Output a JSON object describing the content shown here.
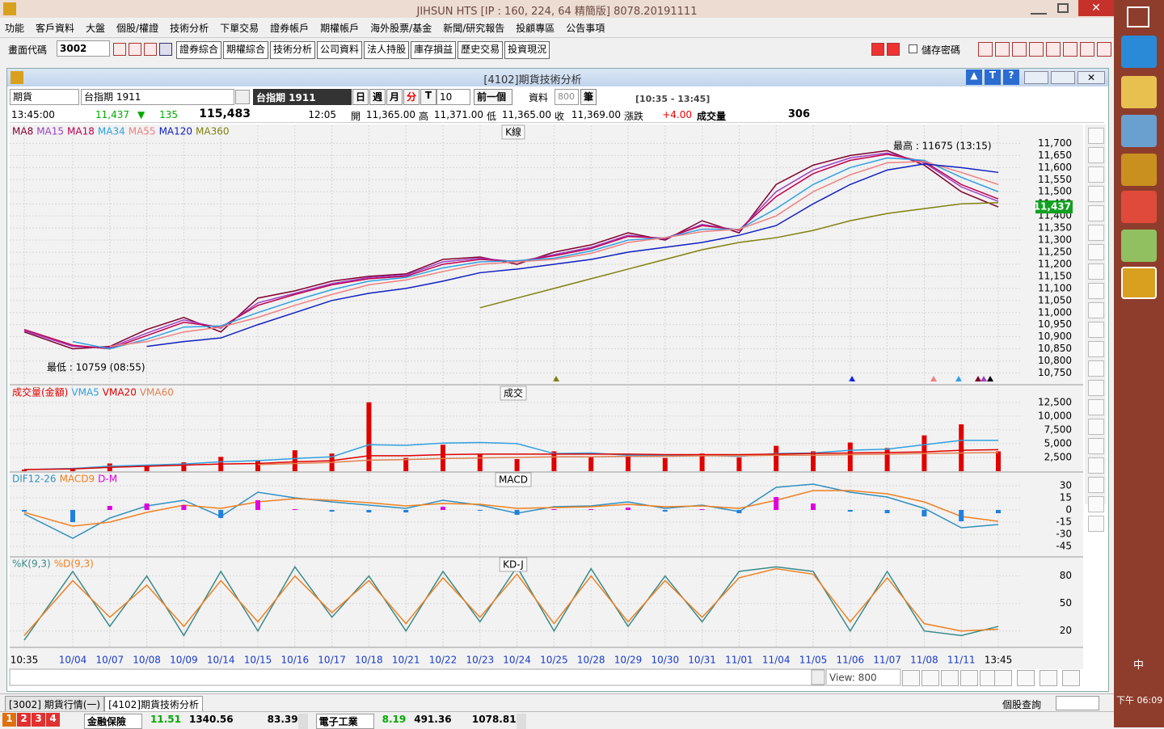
{
  "window": {
    "title": "JIHSUN HTS     [IP : 160, 224, 64 精簡版] 8078.20191111"
  },
  "menu": [
    "功能",
    "客戶資料",
    "大盤",
    "個股/權證",
    "技術分析",
    "下單交易",
    "證券帳戶",
    "期權帳戶",
    "海外股票/基金",
    "新聞/研究報告",
    "投顧專區",
    "公告事項"
  ],
  "toolbar": {
    "code_label": "畫面代碼",
    "code": "3002",
    "buttons": [
      "證券綜合",
      "期權綜合",
      "技術分析",
      "公司資料",
      "法人持股",
      "庫存損益",
      "歷史交易",
      "投資現況"
    ],
    "save_password": "儲存密碼"
  },
  "panel": {
    "title": "[4102]期貨技術分析",
    "market": "期貨",
    "symbol": "台指期 1911",
    "symbol_box": "台指期 1911",
    "periods": [
      "日",
      "週",
      "月",
      "分",
      "T"
    ],
    "interval": "10",
    "prev": "前一個",
    "data_label": "資料",
    "data_count": "800",
    "unit": "筆",
    "session": "[10:35 - 13:45]"
  },
  "quote": {
    "time": "13:45:00",
    "price": "11,437",
    "change": "135",
    "volume": "115,483",
    "bar_time": "12:05",
    "open_label": "開",
    "open": "11,365.00",
    "high_label": "高",
    "high": "11,371.00",
    "low_label": "低",
    "low": "11,365.00",
    "close_label": "收",
    "close": "11,369.00",
    "chg_label": "漲跌",
    "chg": "+4.00",
    "vol_label": "成交量",
    "vol": "306"
  },
  "chart_data": [
    {
      "type": "line",
      "title": "K線",
      "ylim": [
        10705,
        11775
      ],
      "yticks": [
        {
          "value": 10750,
          "label": "10,750"
        },
        {
          "value": 10800,
          "label": "10,800"
        },
        {
          "value": 10850,
          "label": "10,850"
        },
        {
          "value": 10900,
          "label": "10,900"
        },
        {
          "value": 10950,
          "label": "10,950"
        },
        {
          "value": 11000,
          "label": "11,000"
        },
        {
          "value": 11050,
          "label": "11,050"
        },
        {
          "value": 11100,
          "label": "11,100"
        },
        {
          "value": 11150,
          "label": "11,150"
        },
        {
          "value": 11200,
          "label": "11,200"
        },
        {
          "value": 11250,
          "label": "11,250"
        },
        {
          "value": 11300,
          "label": "11,300"
        },
        {
          "value": 11350,
          "label": "11,350"
        },
        {
          "value": 11400,
          "label": "11,400"
        },
        {
          "value": 11450,
          "label": "11,450"
        },
        {
          "value": 11500,
          "label": "11,500"
        },
        {
          "value": 11550,
          "label": "11,550"
        },
        {
          "value": 11600,
          "label": "11,600"
        },
        {
          "value": 11650,
          "label": "11,650"
        },
        {
          "value": 11700,
          "label": "11,700"
        }
      ],
      "annotations": [
        "最高 : 11675 (13:15)",
        "最低 : 10759 (08:55)"
      ],
      "last_label": "11,437",
      "series": [
        {
          "name": "MA8",
          "color": "#800030",
          "values": [
            10920,
            10850,
            10860,
            10930,
            10980,
            10920,
            11060,
            11090,
            11130,
            11150,
            11160,
            11220,
            11230,
            11200,
            11250,
            11280,
            11330,
            11300,
            11380,
            11330,
            11530,
            11610,
            11650,
            11670,
            11610,
            11500,
            11437
          ]
        },
        {
          "name": "MA15",
          "color": "#a040c0",
          "values": [
            10925,
            10860,
            10855,
            10915,
            10970,
            10935,
            11040,
            11080,
            11120,
            11145,
            11155,
            11210,
            11225,
            11210,
            11240,
            11270,
            11320,
            11305,
            11365,
            11340,
            11500,
            11590,
            11640,
            11660,
            11620,
            11520,
            11460
          ]
        },
        {
          "name": "MA18",
          "color": "#c00050",
          "values": [
            10930,
            10865,
            10850,
            10905,
            10960,
            10940,
            11030,
            11075,
            11115,
            11140,
            11150,
            11200,
            11220,
            11212,
            11235,
            11265,
            11315,
            11308,
            11360,
            11342,
            11480,
            11575,
            11630,
            11655,
            11625,
            11530,
            11470
          ]
        },
        {
          "name": "MA34",
          "color": "#30a0e0",
          "values": [
            null,
            10880,
            10850,
            10890,
            10940,
            10945,
            11000,
            11050,
            11095,
            11130,
            11145,
            11185,
            11210,
            11215,
            11225,
            11255,
            11300,
            11310,
            11345,
            11345,
            11430,
            11530,
            11600,
            11640,
            11630,
            11560,
            11500
          ]
        },
        {
          "name": "MA55",
          "color": "#f08080",
          "values": [
            null,
            null,
            10860,
            10880,
            10920,
            10940,
            10980,
            11030,
            11075,
            11115,
            11135,
            11170,
            11200,
            11210,
            11220,
            11245,
            11290,
            11310,
            11335,
            11345,
            11400,
            11500,
            11570,
            11620,
            11625,
            11580,
            11530
          ]
        },
        {
          "name": "MA120",
          "color": "#1020c0",
          "values": [
            null,
            null,
            null,
            10860,
            10880,
            10895,
            10950,
            11000,
            11050,
            11080,
            11100,
            11130,
            11165,
            11180,
            11200,
            11220,
            11250,
            11270,
            11290,
            11320,
            11360,
            11450,
            11530,
            11590,
            11615,
            11600,
            11580
          ]
        },
        {
          "name": "MA360",
          "color": "#808010",
          "values": [
            null,
            null,
            null,
            null,
            null,
            null,
            null,
            null,
            null,
            null,
            null,
            null,
            11020,
            11060,
            11100,
            11140,
            11180,
            11220,
            11260,
            11290,
            11310,
            11340,
            11380,
            11410,
            11430,
            11450,
            11455
          ]
        }
      ]
    },
    {
      "type": "bar",
      "title": "成交",
      "ylim": [
        0,
        15400
      ],
      "yticks": [
        {
          "value": 2500,
          "label": "2,500"
        },
        {
          "value": 5000,
          "label": "5,000"
        },
        {
          "value": 7500,
          "label": "7,500"
        },
        {
          "value": 10000,
          "label": "10,000"
        },
        {
          "value": 12500,
          "label": "12,500"
        }
      ],
      "series": [
        {
          "name": "成交量(金額)",
          "color": "#e00000",
          "values": [
            300,
            600,
            1400,
            1100,
            1600,
            2600,
            2000,
            3800,
            3200,
            12500,
            2400,
            4800,
            3100,
            2200,
            3600,
            2600,
            3000,
            2400,
            3200,
            2500,
            4600,
            3600,
            5200,
            4200,
            6500,
            8500,
            3600
          ]
        },
        {
          "name": "VMA5",
          "color": "#30a0e0",
          "style": "line",
          "values": [
            300,
            500,
            900,
            1100,
            1300,
            1700,
            1900,
            2300,
            2600,
            4800,
            4700,
            5100,
            5200,
            5000,
            3200,
            3300,
            2900,
            2800,
            2900,
            2700,
            3200,
            3300,
            3800,
            4000,
            4800,
            5600,
            5600
          ]
        },
        {
          "name": "VMA20",
          "color": "#e00000",
          "style": "line",
          "values": [
            300,
            400,
            700,
            900,
            1100,
            1300,
            1400,
            1700,
            1900,
            2800,
            2800,
            3000,
            3100,
            3100,
            3100,
            3100,
            3100,
            3000,
            3000,
            3000,
            3100,
            3200,
            3300,
            3400,
            3500,
            3800,
            3900
          ]
        },
        {
          "name": "VMA60",
          "color": "#e08050",
          "style": "line",
          "values": [
            null,
            null,
            null,
            null,
            null,
            null,
            1200,
            1400,
            1600,
            2000,
            2100,
            2300,
            2400,
            2500,
            2600,
            2600,
            2700,
            2700,
            2800,
            2800,
            2900,
            2900,
            3000,
            3100,
            3200,
            3300,
            3400
          ]
        }
      ]
    },
    {
      "type": "line",
      "title": "MACD",
      "ylim": [
        -57,
        46
      ],
      "yticks": [
        -45,
        -30,
        -15,
        0,
        15,
        30
      ],
      "series": [
        {
          "name": "DIF12-26",
          "color": "#3090c0",
          "values": [
            -5,
            -35,
            -10,
            5,
            12,
            -8,
            22,
            15,
            10,
            6,
            2,
            12,
            6,
            -4,
            4,
            5,
            10,
            2,
            6,
            -2,
            28,
            32,
            22,
            16,
            2,
            -22,
            -18
          ]
        },
        {
          "name": "MACD9",
          "color": "#f08020",
          "values": [
            -3,
            -20,
            -15,
            -3,
            6,
            2,
            10,
            14,
            12,
            9,
            5,
            8,
            7,
            2,
            3,
            4,
            7,
            4,
            5,
            2,
            12,
            24,
            24,
            20,
            10,
            -8,
            -14
          ]
        },
        {
          "name": "D-M",
          "color": "#e000e0",
          "negative_color": "#2080e0",
          "style": "bar",
          "values": [
            -2,
            -15,
            5,
            8,
            6,
            -10,
            12,
            1,
            -2,
            -3,
            -3,
            4,
            -1,
            -6,
            1,
            1,
            3,
            -2,
            1,
            -4,
            16,
            8,
            -2,
            -4,
            -8,
            -14,
            -4
          ]
        }
      ]
    },
    {
      "type": "line",
      "title": "KD-J",
      "ylim": [
        3,
        100
      ],
      "yticks": [
        20,
        50,
        80
      ],
      "categories": [
        "10:35",
        "10/04",
        "10/07",
        "10/08",
        "10/09",
        "10/14",
        "10/15",
        "10/16",
        "10/17",
        "10/18",
        "10/21",
        "10/22",
        "10/23",
        "10/24",
        "10/25",
        "10/28",
        "10/29",
        "10/30",
        "10/31",
        "11/01",
        "11/04",
        "11/05",
        "11/06",
        "11/07",
        "11/08",
        "11/11",
        "13:45"
      ],
      "series": [
        {
          "name": "%K(9,3)",
          "color": "#3a8a8a",
          "values": [
            10,
            85,
            25,
            80,
            15,
            85,
            20,
            90,
            35,
            80,
            20,
            85,
            30,
            90,
            20,
            88,
            25,
            80,
            30,
            85,
            90,
            85,
            20,
            85,
            20,
            15,
            25
          ]
        },
        {
          "name": "%D(9,3)",
          "color": "#f08020",
          "values": [
            15,
            75,
            35,
            70,
            25,
            75,
            30,
            80,
            40,
            75,
            28,
            78,
            35,
            82,
            28,
            80,
            30,
            75,
            35,
            78,
            88,
            82,
            30,
            78,
            28,
            20,
            22
          ]
        }
      ]
    }
  ],
  "footer": {
    "view": "View: 800",
    "tabs": [
      "[3002] 期貨行情(一)",
      "[4102]期貨技術分析"
    ],
    "stock_query": "個股查詢",
    "pages": [
      "1",
      "2",
      "3",
      "4"
    ],
    "tickers": [
      {
        "name": "金融保險",
        "change": "11.51",
        "index": "1340.56",
        "value": "83.39"
      },
      {
        "name": "電子工業",
        "change": "8.19",
        "index": "491.36",
        "value": "1078.81"
      }
    ]
  },
  "taskbar": {
    "ime": "中",
    "time": "下午 06:09"
  }
}
